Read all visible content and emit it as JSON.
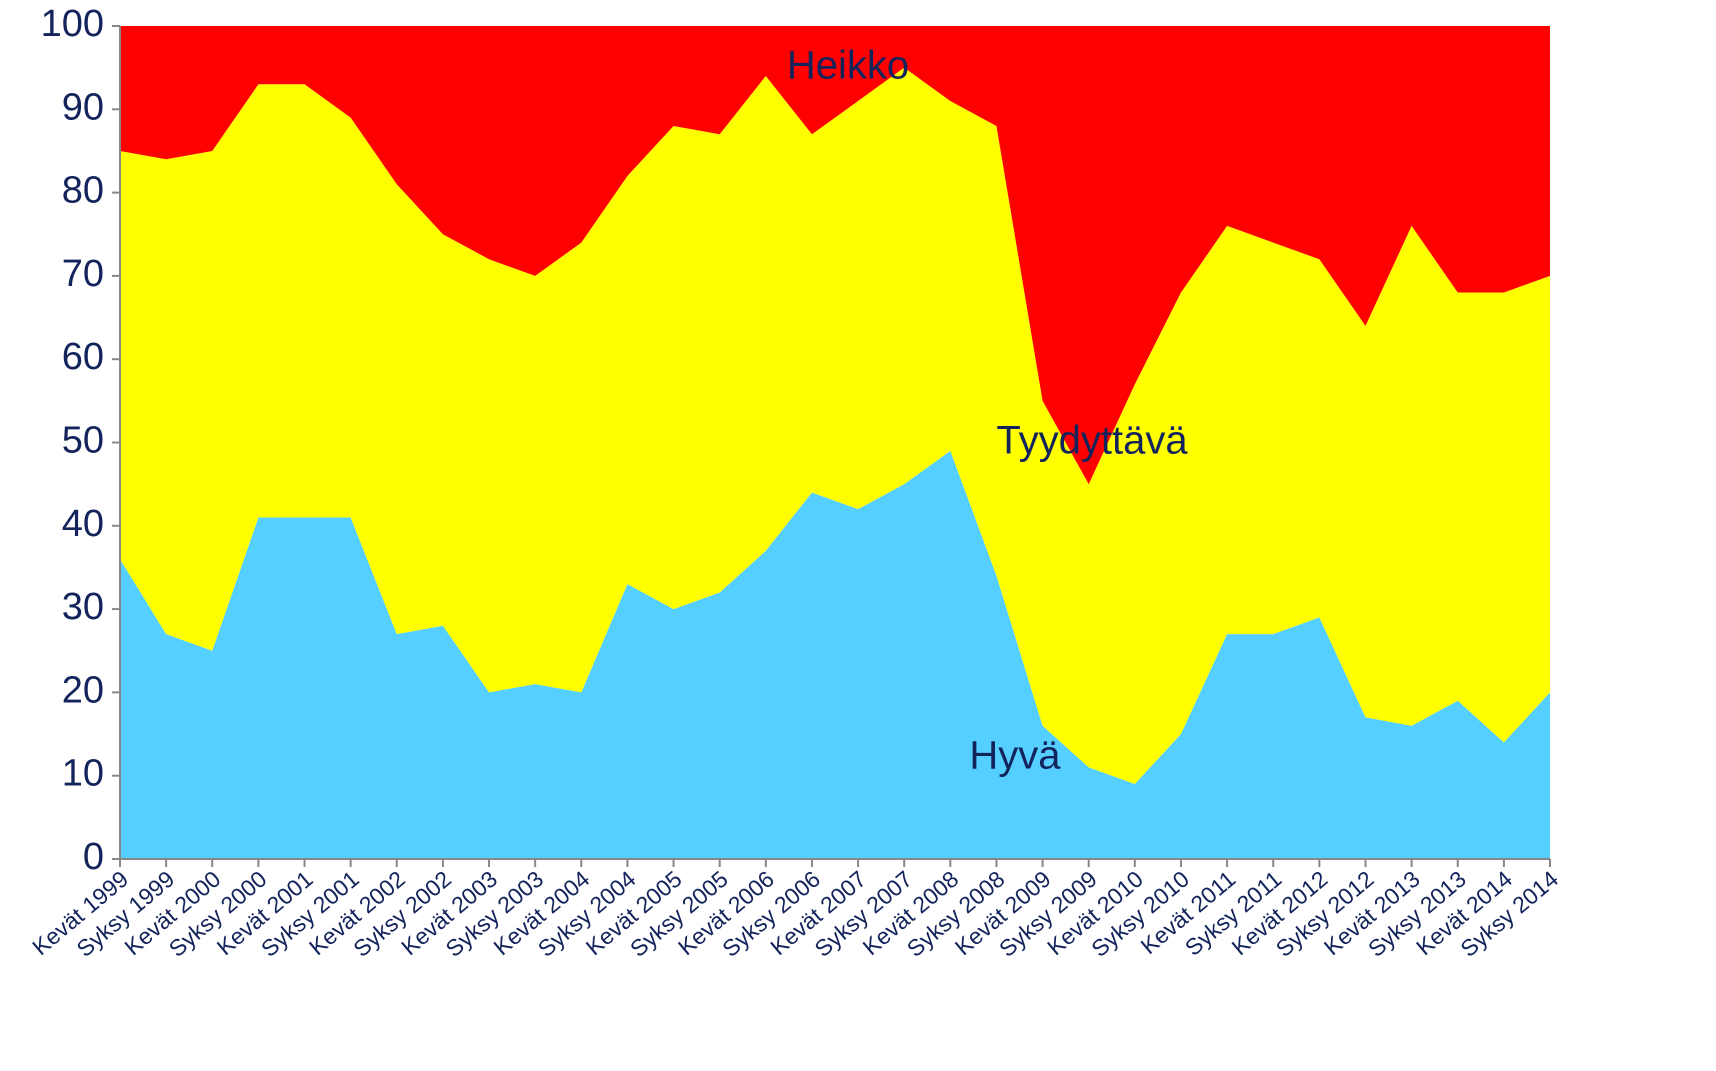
{
  "chart_data": {
    "type": "stacked_area",
    "categories": [
      "Kevät 1999",
      "Syksy 1999",
      "Kevät 2000",
      "Syksy 2000",
      "Kevät 2001",
      "Syksy 2001",
      "Kevät 2002",
      "Syksy 2002",
      "Kevät 2003",
      "Syksy 2003",
      "Kevät 2004",
      "Syksy 2004",
      "Kevät 2005",
      "Syksy 2005",
      "Kevät 2006",
      "Syksy 2006",
      "Kevät 2007",
      "Syksy 2007",
      "Kevät 2008",
      "Syksy 2008",
      "Kevät 2009",
      "Syksy 2009",
      "Kevät 2010",
      "Syksy 2010",
      "Kevät 2011",
      "Syksy 2011",
      "Kevät 2012",
      "Syksy 2012",
      "Kevät 2013",
      "Syksy 2013",
      "Kevät 2014",
      "Syksy 2014"
    ],
    "series": [
      {
        "name": "Hyvä",
        "color": "#55cfff",
        "values": [
          36,
          27,
          25,
          41,
          41,
          41,
          27,
          28,
          20,
          21,
          20,
          33,
          30,
          32,
          37,
          44,
          42,
          45,
          49,
          34,
          16,
          11,
          9,
          15,
          27,
          27,
          29,
          17,
          16,
          19,
          14,
          20
        ]
      },
      {
        "name": "Tyydyttävä",
        "color": "#ffff00",
        "values": [
          49,
          57,
          60,
          52,
          52,
          48,
          54,
          47,
          52,
          49,
          54,
          49,
          58,
          55,
          57,
          43,
          49,
          50,
          42,
          54,
          39,
          34,
          48,
          53,
          49,
          47,
          43,
          47,
          60,
          49,
          54,
          50
        ]
      },
      {
        "name": "Heikko",
        "color": "#ff0000",
        "values": [
          15,
          16,
          15,
          7,
          7,
          11,
          19,
          25,
          28,
          30,
          26,
          18,
          12,
          13,
          6,
          13,
          9,
          5,
          9,
          12,
          45,
          55,
          43,
          32,
          24,
          26,
          28,
          36,
          24,
          32,
          32,
          30
        ]
      }
    ],
    "ylim": [
      0,
      100
    ],
    "yticks": [
      0,
      10,
      20,
      30,
      40,
      50,
      60,
      70,
      80,
      90,
      100
    ]
  }
}
